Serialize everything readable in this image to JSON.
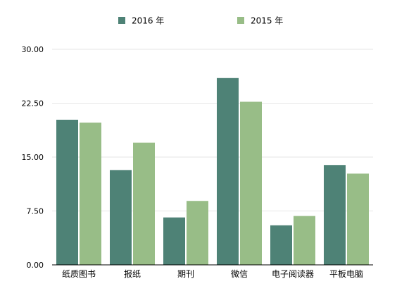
{
  "chart_data": {
    "type": "bar",
    "title": "",
    "xlabel": "",
    "ylabel": "",
    "categories": [
      "纸质图书",
      "报纸",
      "期刊",
      "微信",
      "电子阅读器",
      "平板电脑"
    ],
    "series": [
      {
        "name": "2016 年",
        "color": "#4e8276",
        "values": [
          20.2,
          13.2,
          6.6,
          26.0,
          5.5,
          13.9
        ]
      },
      {
        "name": "2015 年",
        "color": "#98bd87",
        "values": [
          19.8,
          17.0,
          8.9,
          22.7,
          6.8,
          12.7
        ]
      }
    ],
    "ylim": [
      0,
      30
    ],
    "yticks": [
      0,
      7.5,
      15,
      22.5,
      30
    ],
    "ytick_labels": [
      "0.00",
      "7.50",
      "15.00",
      "22.50",
      "30.00"
    ],
    "grid": true,
    "legend_position": "top-center"
  }
}
